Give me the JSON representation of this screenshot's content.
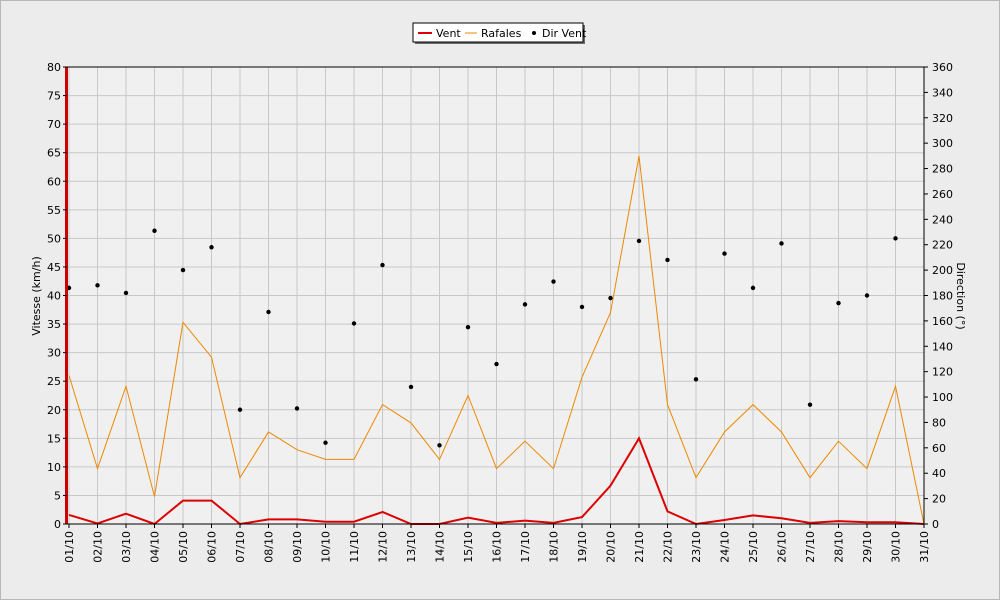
{
  "chart_data": {
    "type": "line",
    "title": "",
    "xlabel": "",
    "ylabel": "Vitesse (km/h)",
    "y2label": "Direction (°)",
    "ylim": [
      0,
      80
    ],
    "y2lim": [
      0,
      360
    ],
    "yticks": [
      0,
      5,
      10,
      15,
      20,
      25,
      30,
      35,
      40,
      45,
      50,
      55,
      60,
      65,
      70,
      75,
      80
    ],
    "y2ticks": [
      0,
      20,
      40,
      60,
      80,
      100,
      120,
      140,
      160,
      180,
      200,
      220,
      240,
      260,
      280,
      300,
      320,
      340,
      360
    ],
    "grid": true,
    "legend_position": "top-center",
    "categories": [
      "01/10",
      "02/10",
      "03/10",
      "04/10",
      "05/10",
      "06/10",
      "07/10",
      "08/10",
      "09/10",
      "10/10",
      "11/10",
      "12/10",
      "13/10",
      "14/10",
      "15/10",
      "16/10",
      "17/10",
      "18/10",
      "19/10",
      "20/10",
      "21/10",
      "22/10",
      "23/10",
      "24/10",
      "25/10",
      "26/10",
      "27/10",
      "28/10",
      "29/10",
      "30/10",
      "31/10"
    ],
    "series": [
      {
        "name": "Vent",
        "kind": "line",
        "axis": "left",
        "color": "#dd0000",
        "values": [
          1.6,
          0.1,
          1.8,
          0.0,
          4.1,
          4.1,
          0.0,
          0.8,
          0.8,
          0.4,
          0.4,
          2.1,
          0.0,
          0.0,
          1.1,
          0.2,
          0.6,
          0.2,
          1.2,
          6.7,
          15.0,
          2.2,
          0.0,
          0.7,
          1.5,
          1.0,
          0.2,
          0.5,
          0.3,
          0.3,
          0.0
        ]
      },
      {
        "name": "Rafales",
        "kind": "line",
        "axis": "left",
        "color": "#ee8800",
        "values": [
          26.0,
          9.7,
          24.1,
          4.8,
          35.3,
          29.2,
          8.1,
          16.1,
          13.0,
          11.3,
          11.3,
          20.9,
          17.7,
          11.3,
          22.5,
          9.7,
          14.5,
          9.7,
          25.7,
          37.0,
          64.4,
          20.9,
          8.1,
          16.1,
          20.9,
          16.1,
          8.1,
          14.5,
          9.7,
          24.1,
          0.0
        ]
      },
      {
        "name": "Dir Vent",
        "kind": "scatter",
        "axis": "right",
        "color": "#000000",
        "values": [
          186,
          188,
          182,
          231,
          200,
          218,
          90,
          167,
          91,
          64,
          158,
          204,
          108,
          62,
          155,
          126,
          173,
          191,
          171,
          178,
          223,
          208,
          114,
          213,
          186,
          221,
          94,
          174,
          180,
          225,
          null
        ]
      }
    ]
  },
  "colors": {
    "background": "#ececec",
    "plot_background": "#f0f0f0",
    "grid": "#c8c8c8",
    "left_axis_bar": "#cc0000"
  }
}
